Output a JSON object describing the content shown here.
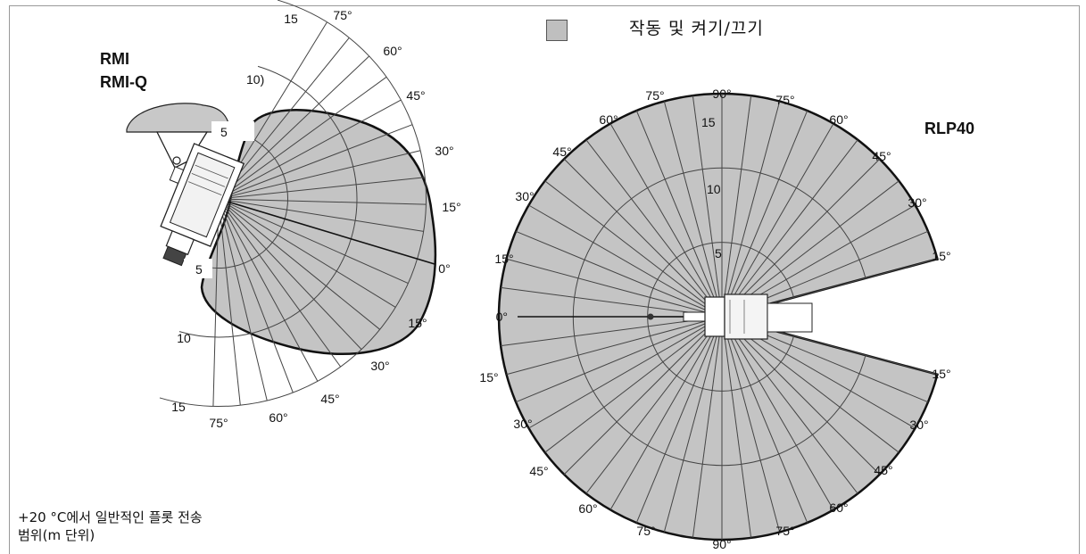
{
  "legend": {
    "label": "작동 및 켜기/끄기",
    "swatch_color": "#bfbfbf"
  },
  "caption": {
    "line1": "+20 °C에서 일반적인 플롯 전송",
    "line2": "범위(m 단위)"
  },
  "left_diagram": {
    "title_line1": "RMI",
    "title_line2": "RMI-Q",
    "range_labels": [
      "5",
      "10)",
      "15",
      "5",
      "10",
      "15"
    ],
    "angle_labels_upper": [
      "75°",
      "60°",
      "45°",
      "30°",
      "15°"
    ],
    "zero_label": "0°",
    "angle_labels_lower": [
      "15°",
      "30°",
      "45°",
      "60°",
      "75°"
    ]
  },
  "right_diagram": {
    "title": "RLP40",
    "range_labels": [
      "15",
      "10",
      "5"
    ],
    "top_label": "90°",
    "bottom_label": "90°",
    "zero_label": "0°",
    "angles_top_left": [
      "75°",
      "60°",
      "45°",
      "30°",
      "15°"
    ],
    "angles_top_right": [
      "75°",
      "60°",
      "45°",
      "30°",
      "15°"
    ],
    "angles_bottom_left": [
      "15°",
      "30°",
      "45°",
      "60°",
      "75°"
    ],
    "angles_bottom_right": [
      "15°",
      "30°",
      "45°",
      "60°",
      "75°"
    ]
  },
  "colors": {
    "coverage_fill": "#c4c4c4",
    "outline": "#111111",
    "frame": "#999999"
  }
}
